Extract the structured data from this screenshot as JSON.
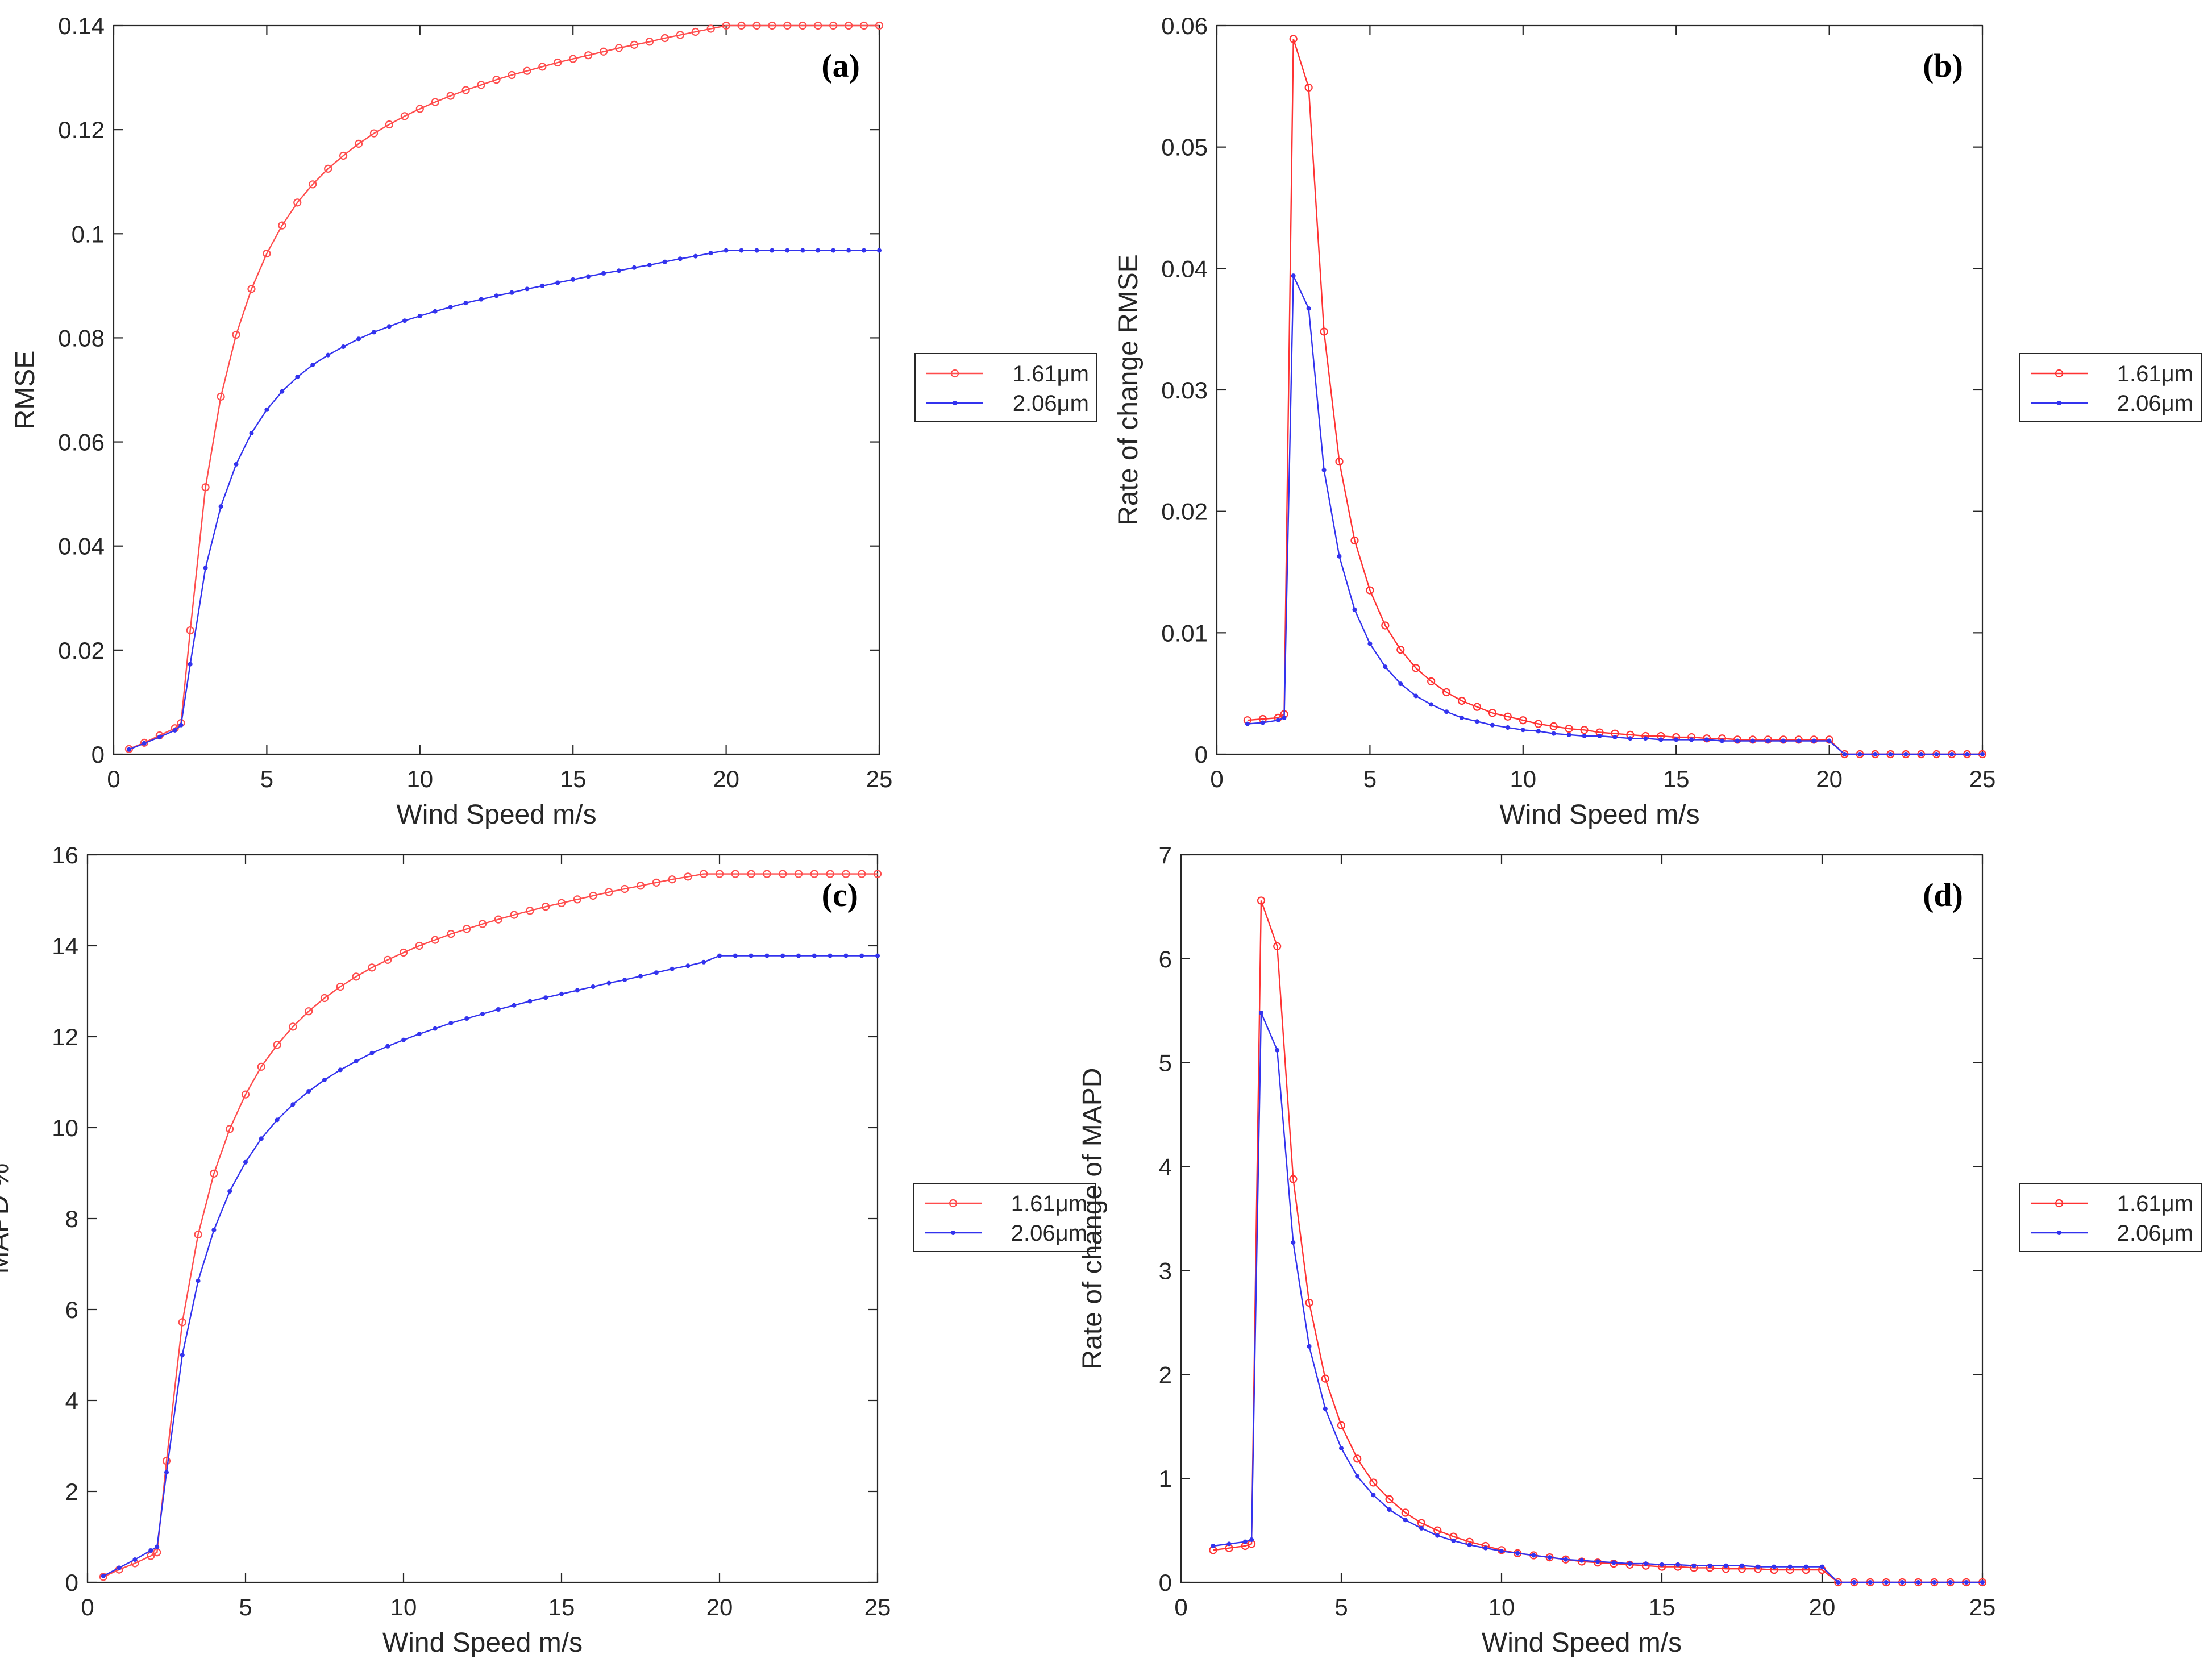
{
  "chart_data": [
    {
      "type": "line",
      "panel_label": "(a)",
      "xlabel": "Wind Speed m/s",
      "ylabel": "RMSE",
      "xlim": [
        0,
        25
      ],
      "ylim": [
        0,
        0.14
      ],
      "xticks": [
        0,
        5,
        10,
        15,
        20,
        25
      ],
      "xtick_labels": [
        "0",
        "5",
        "10",
        "15",
        "20",
        "25"
      ],
      "yticks": [
        0,
        0.02,
        0.04,
        0.06,
        0.08,
        0.1,
        0.12,
        0.14
      ],
      "ytick_labels": [
        "0",
        "0.02",
        "0.04",
        "0.06",
        "0.08",
        "0.1",
        "0.12",
        "0.14"
      ],
      "legend_position": "right-outside",
      "grid": false,
      "x": [
        0.5,
        1,
        1.5,
        2,
        2.2,
        2.5,
        3,
        3.5,
        4,
        4.5,
        5,
        5.5,
        6,
        6.5,
        7,
        7.5,
        8,
        8.5,
        9,
        9.5,
        10,
        10.5,
        11,
        11.5,
        12,
        12.5,
        13,
        13.5,
        14,
        14.5,
        15,
        15.5,
        16,
        16.5,
        17,
        17.5,
        18,
        18.5,
        19,
        19.5,
        20,
        20.5,
        21,
        21.5,
        22,
        22.5,
        23,
        23.5,
        24,
        24.5,
        25
      ],
      "series": [
        {
          "name": "1.61μm",
          "color": "#ff4d4d",
          "marker": "circle",
          "values": [
            0.001,
            0.0022,
            0.0036,
            0.005,
            0.006,
            0.0238,
            0.0513,
            0.0687,
            0.0806,
            0.0894,
            0.0962,
            0.1016,
            0.106,
            0.1095,
            0.1125,
            0.115,
            0.1173,
            0.1193,
            0.121,
            0.1226,
            0.124,
            0.1253,
            0.1265,
            0.1276,
            0.1286,
            0.1296,
            0.1305,
            0.1313,
            0.1321,
            0.1329,
            0.1336,
            0.1343,
            0.135,
            0.1357,
            0.1363,
            0.1369,
            0.1376,
            0.1382,
            0.1388,
            0.1394,
            0.14,
            0.14,
            0.14,
            0.14,
            0.14,
            0.14,
            0.14,
            0.14,
            0.14,
            0.14,
            0.14
          ]
        },
        {
          "name": "2.06μm",
          "color": "#3333ee",
          "marker": "dot",
          "values": [
            0.0009,
            0.0021,
            0.0033,
            0.0046,
            0.0056,
            0.0173,
            0.0358,
            0.0476,
            0.0557,
            0.0617,
            0.0662,
            0.0697,
            0.0725,
            0.0748,
            0.0767,
            0.0783,
            0.0798,
            0.0811,
            0.0822,
            0.0833,
            0.0842,
            0.0851,
            0.0859,
            0.0867,
            0.0874,
            0.0881,
            0.0887,
            0.0894,
            0.09,
            0.0906,
            0.0912,
            0.0918,
            0.0924,
            0.0929,
            0.0935,
            0.094,
            0.0946,
            0.0952,
            0.0957,
            0.0963,
            0.0968,
            0.0968,
            0.0968,
            0.0968,
            0.0968,
            0.0968,
            0.0968,
            0.0968,
            0.0968,
            0.0968,
            0.0968
          ]
        }
      ]
    },
    {
      "type": "line",
      "panel_label": "(b)",
      "xlabel": "Wind Speed m/s",
      "ylabel": "Rate of change RMSE",
      "xlim": [
        0,
        25
      ],
      "ylim": [
        0,
        0.06
      ],
      "xticks": [
        0,
        5,
        10,
        15,
        20,
        25
      ],
      "xtick_labels": [
        "0",
        "5",
        "10",
        "15",
        "20",
        "25"
      ],
      "yticks": [
        0,
        0.01,
        0.02,
        0.03,
        0.04,
        0.05,
        0.06
      ],
      "ytick_labels": [
        "0",
        "0.01",
        "0.02",
        "0.03",
        "0.04",
        "0.05",
        "0.06"
      ],
      "legend_position": "right-outside",
      "grid": false,
      "x": [
        1,
        1.5,
        2,
        2.2,
        2.5,
        3,
        3.5,
        4,
        4.5,
        5,
        5.5,
        6,
        6.5,
        7,
        7.5,
        8,
        8.5,
        9,
        9.5,
        10,
        10.5,
        11,
        11.5,
        12,
        12.5,
        13,
        13.5,
        14,
        14.5,
        15,
        15.5,
        16,
        16.5,
        17,
        17.5,
        18,
        18.5,
        19,
        19.5,
        20,
        20.5,
        21,
        21.5,
        22,
        22.5,
        23,
        23.5,
        24,
        24.5,
        25
      ],
      "series": [
        {
          "name": "1.61μm",
          "color": "#ff3333",
          "marker": "circle",
          "values": [
            0.0028,
            0.0029,
            0.003,
            0.0033,
            0.0589,
            0.0549,
            0.0348,
            0.0241,
            0.0176,
            0.0135,
            0.0106,
            0.0086,
            0.0071,
            0.006,
            0.0051,
            0.0044,
            0.0039,
            0.0034,
            0.0031,
            0.0028,
            0.0025,
            0.0023,
            0.0021,
            0.002,
            0.0018,
            0.0017,
            0.0016,
            0.0015,
            0.0015,
            0.0014,
            0.0014,
            0.0013,
            0.0013,
            0.0012,
            0.0012,
            0.0012,
            0.0012,
            0.0012,
            0.0012,
            0.0012,
            0,
            0,
            0,
            0,
            0,
            0,
            0,
            0,
            0,
            0
          ]
        },
        {
          "name": "2.06μm",
          "color": "#3333ee",
          "marker": "dot",
          "values": [
            0.0025,
            0.0026,
            0.0028,
            0.003,
            0.0394,
            0.0367,
            0.0234,
            0.0163,
            0.0119,
            0.0091,
            0.0072,
            0.0058,
            0.0048,
            0.0041,
            0.0035,
            0.003,
            0.0027,
            0.0024,
            0.0022,
            0.002,
            0.0019,
            0.0017,
            0.0016,
            0.0015,
            0.0015,
            0.0014,
            0.0013,
            0.0013,
            0.0012,
            0.0012,
            0.0012,
            0.0012,
            0.0011,
            0.0011,
            0.0011,
            0.0011,
            0.0011,
            0.0011,
            0.0011,
            0.0011,
            0,
            0,
            0,
            0,
            0,
            0,
            0,
            0,
            0,
            0
          ]
        }
      ]
    },
    {
      "type": "line",
      "panel_label": "(c)",
      "xlabel": "Wind Speed m/s",
      "ylabel": "MAPD %",
      "xlim": [
        0,
        25
      ],
      "ylim": [
        0,
        16
      ],
      "xticks": [
        0,
        5,
        10,
        15,
        20,
        25
      ],
      "xtick_labels": [
        "0",
        "5",
        "10",
        "15",
        "20",
        "25"
      ],
      "yticks": [
        0,
        2,
        4,
        6,
        8,
        10,
        12,
        14,
        16
      ],
      "ytick_labels": [
        "0",
        "2",
        "4",
        "6",
        "8",
        "10",
        "12",
        "14",
        "16"
      ],
      "legend_position": "right-outside",
      "grid": false,
      "x": [
        0.5,
        1,
        1.5,
        2,
        2.2,
        2.5,
        3,
        3.5,
        4,
        4.5,
        5,
        5.5,
        6,
        6.5,
        7,
        7.5,
        8,
        8.5,
        9,
        9.5,
        10,
        10.5,
        11,
        11.5,
        12,
        12.5,
        13,
        13.5,
        14,
        14.5,
        15,
        15.5,
        16,
        16.5,
        17,
        17.5,
        18,
        18.5,
        19,
        19.5,
        20,
        20.5,
        21,
        21.5,
        22,
        22.5,
        23,
        23.5,
        24,
        24.5,
        25
      ],
      "series": [
        {
          "name": "1.61μm",
          "color": "#ff4d4d",
          "marker": "circle",
          "values": [
            0.12,
            0.28,
            0.42,
            0.58,
            0.66,
            2.67,
            5.72,
            7.65,
            8.99,
            9.97,
            10.73,
            11.34,
            11.82,
            12.22,
            12.56,
            12.85,
            13.1,
            13.32,
            13.52,
            13.69,
            13.85,
            14,
            14.13,
            14.26,
            14.37,
            14.48,
            14.58,
            14.68,
            14.77,
            14.86,
            14.94,
            15.02,
            15.1,
            15.18,
            15.25,
            15.32,
            15.39,
            15.46,
            15.52,
            15.58,
            15.58,
            15.58,
            15.58,
            15.58,
            15.58,
            15.58,
            15.58,
            15.58,
            15.58,
            15.58,
            15.58
          ]
        },
        {
          "name": "2.06μm",
          "color": "#3333ee",
          "marker": "dot",
          "values": [
            0.14,
            0.32,
            0.5,
            0.7,
            0.78,
            2.42,
            5,
            6.63,
            7.75,
            8.6,
            9.24,
            9.76,
            10.17,
            10.51,
            10.8,
            11.05,
            11.27,
            11.46,
            11.64,
            11.79,
            11.93,
            12.06,
            12.18,
            12.3,
            12.4,
            12.5,
            12.6,
            12.69,
            12.78,
            12.86,
            12.94,
            13.02,
            13.1,
            13.18,
            13.25,
            13.33,
            13.41,
            13.49,
            13.56,
            13.64,
            13.78,
            13.78,
            13.78,
            13.78,
            13.78,
            13.78,
            13.78,
            13.78,
            13.78,
            13.78,
            13.78
          ]
        }
      ]
    },
    {
      "type": "line",
      "panel_label": "(d)",
      "xlabel": "Wind Speed m/s",
      "ylabel": "Rate of change of MAPD",
      "xlim": [
        0,
        25
      ],
      "ylim": [
        0,
        7
      ],
      "xticks": [
        0,
        5,
        10,
        15,
        20,
        25
      ],
      "xtick_labels": [
        "0",
        "5",
        "10",
        "15",
        "20",
        "25"
      ],
      "yticks": [
        0,
        1,
        2,
        3,
        4,
        5,
        6,
        7
      ],
      "ytick_labels": [
        "0",
        "1",
        "2",
        "3",
        "4",
        "5",
        "6",
        "7"
      ],
      "legend_position": "right-outside",
      "grid": false,
      "x": [
        1,
        1.5,
        2,
        2.2,
        2.5,
        3,
        3.5,
        4,
        4.5,
        5,
        5.5,
        6,
        6.5,
        7,
        7.5,
        8,
        8.5,
        9,
        9.5,
        10,
        10.5,
        11,
        11.5,
        12,
        12.5,
        13,
        13.5,
        14,
        14.5,
        15,
        15.5,
        16,
        16.5,
        17,
        17.5,
        18,
        18.5,
        19,
        19.5,
        20,
        20.5,
        21,
        21.5,
        22,
        22.5,
        23,
        23.5,
        24,
        24.5,
        25
      ],
      "series": [
        {
          "name": "1.61μm",
          "color": "#ff3333",
          "marker": "circle",
          "values": [
            0.31,
            0.33,
            0.35,
            0.37,
            6.56,
            6.12,
            3.88,
            2.69,
            1.96,
            1.51,
            1.19,
            0.96,
            0.8,
            0.67,
            0.57,
            0.5,
            0.44,
            0.39,
            0.35,
            0.31,
            0.28,
            0.26,
            0.24,
            0.22,
            0.2,
            0.19,
            0.18,
            0.17,
            0.16,
            0.15,
            0.15,
            0.14,
            0.14,
            0.13,
            0.13,
            0.13,
            0.12,
            0.12,
            0.12,
            0.12,
            0,
            0,
            0,
            0,
            0,
            0,
            0,
            0,
            0,
            0
          ]
        },
        {
          "name": "2.06μm",
          "color": "#3333ee",
          "marker": "dot",
          "values": [
            0.35,
            0.37,
            0.39,
            0.41,
            5.48,
            5.12,
            3.27,
            2.27,
            1.67,
            1.29,
            1.02,
            0.84,
            0.7,
            0.6,
            0.52,
            0.45,
            0.4,
            0.36,
            0.33,
            0.3,
            0.28,
            0.26,
            0.24,
            0.22,
            0.21,
            0.2,
            0.19,
            0.18,
            0.18,
            0.17,
            0.17,
            0.16,
            0.16,
            0.16,
            0.16,
            0.15,
            0.15,
            0.15,
            0.15,
            0.15,
            0,
            0,
            0,
            0,
            0,
            0,
            0,
            0,
            0,
            0
          ]
        }
      ]
    }
  ]
}
